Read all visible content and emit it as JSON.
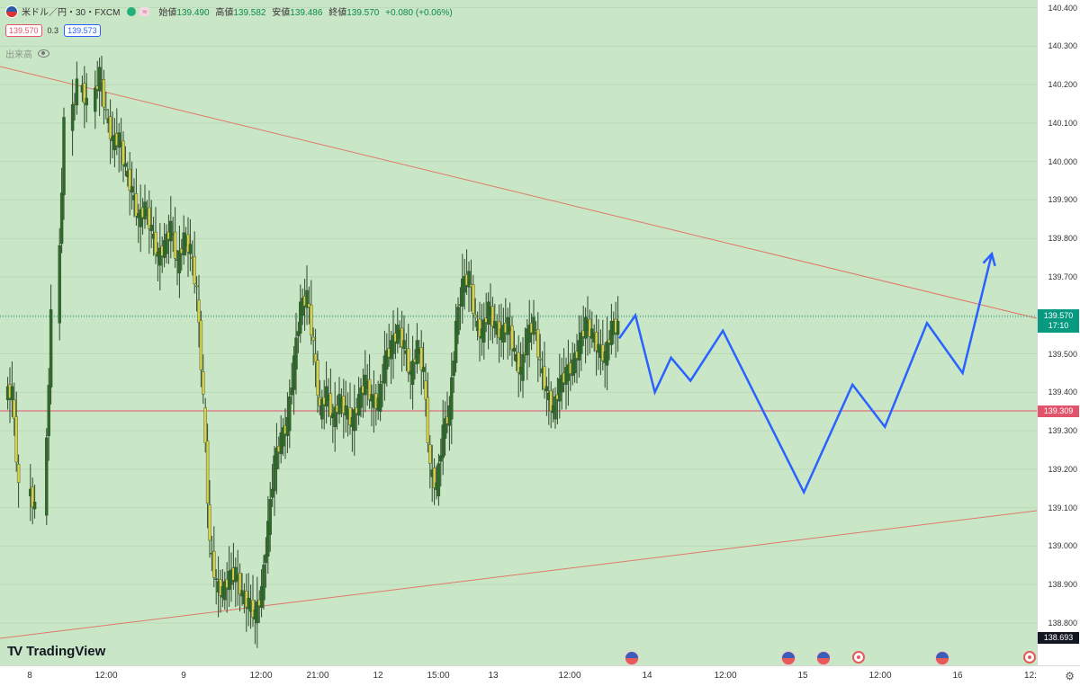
{
  "symbol": {
    "title": "米ドル／円・30・FXCM",
    "ohlc": [
      {
        "label": "始値",
        "value": "139.490"
      },
      {
        "label": "高値",
        "value": "139.582"
      },
      {
        "label": "安値",
        "value": "139.486"
      },
      {
        "label": "終値",
        "value": "139.570"
      }
    ],
    "change": "+0.080 (+0.06%)",
    "badge": "≈",
    "bid": "139.570",
    "spread": "0.3",
    "ask": "139.573",
    "volume_label": "出来高"
  },
  "price_scale": {
    "ticks": [
      "140.400",
      "140.300",
      "140.200",
      "140.100",
      "140.000",
      "139.900",
      "139.800",
      "139.700",
      "139.600",
      "139.500",
      "139.400",
      "139.300",
      "139.200",
      "139.100",
      "139.000",
      "138.900",
      "138.800"
    ],
    "current_price": "139.570",
    "countdown": "17:10",
    "hline_price": "139.309",
    "bottom_price": "138.693"
  },
  "time_scale": {
    "labels": [
      "8",
      "12:00",
      "9",
      "12:00",
      "21:00",
      "12",
      "15:00",
      "13",
      "12:00",
      "14",
      "12:00",
      "15",
      "12:00",
      "16",
      "12:"
    ]
  },
  "events": [
    {
      "type": "us"
    },
    {
      "type": "us"
    },
    {
      "type": "us"
    },
    {
      "type": "jp"
    },
    {
      "type": "us"
    },
    {
      "type": "jp"
    }
  ],
  "branding": {
    "logo_text": "TradingView",
    "logo_mark": "TV"
  },
  "colors": {
    "background": "#c9e6c6",
    "up_candle": "#2e6b2a",
    "down_candle": "#d8d04a",
    "trendline": "#e07a6a",
    "hline": "#e2546b",
    "forecast": "#2962ff",
    "current_price_badge": "#089981",
    "hline_badge": "#e2546b",
    "bottom_badge": "#131722"
  },
  "chart_data": {
    "type": "line",
    "title": "",
    "xlabel": "",
    "ylabel": "",
    "ylim": [
      138.69,
      140.42
    ],
    "series": [
      {
        "x": [
          1,
          3,
          8,
          13,
          17,
          21,
          24,
          28,
          30,
          32,
          34,
          36,
          38,
          40,
          42,
          44,
          46,
          48,
          50,
          52,
          54,
          56,
          58,
          60,
          62,
          64,
          66,
          68,
          70,
          72,
          74,
          76,
          78,
          80,
          82,
          84,
          86,
          88,
          90,
          92,
          94,
          96,
          98,
          100,
          102,
          104,
          106,
          108,
          110,
          112,
          114,
          116,
          118,
          120,
          122,
          124,
          126,
          128,
          130,
          132,
          134,
          136,
          138,
          140,
          142,
          144,
          146,
          148,
          150,
          152,
          154,
          156,
          158,
          160,
          162,
          164,
          166,
          168,
          170,
          172,
          174,
          176,
          178,
          180,
          182,
          184,
          186,
          188
        ],
        "values": [
          139.4,
          139.15,
          139.1,
          139.6,
          140.1,
          140.2,
          140.15,
          140.23,
          140.12,
          140.05,
          140.06,
          139.98,
          139.92,
          139.85,
          139.88,
          139.82,
          139.75,
          139.78,
          139.83,
          139.73,
          139.8,
          139.77,
          139.66,
          139.38,
          139.0,
          138.9,
          138.88,
          138.92,
          138.93,
          138.87,
          138.85,
          138.82,
          138.88,
          139.05,
          139.22,
          139.28,
          139.32,
          139.48,
          139.62,
          139.65,
          139.52,
          139.35,
          139.4,
          139.33,
          139.38,
          139.35,
          139.32,
          139.38,
          139.43,
          139.38,
          139.37,
          139.48,
          139.52,
          139.56,
          139.52,
          139.44,
          139.52,
          139.45,
          139.2,
          139.15,
          139.3,
          139.35,
          139.57,
          139.68,
          139.7,
          139.58,
          139.55,
          139.62,
          139.57,
          139.55,
          139.58,
          139.5,
          139.45,
          139.55,
          139.58,
          139.47,
          139.4,
          139.35,
          139.42,
          139.45,
          139.47,
          139.52,
          139.58,
          139.55,
          139.51,
          139.49,
          139.57,
          139.57
        ],
        "name": ""
      },
      {
        "x": [
          190,
          195,
          201,
          206,
          212,
          222,
          247,
          262,
          272,
          285,
          296,
          305
        ],
        "values": [
          139.54,
          139.6,
          139.4,
          139.49,
          139.43,
          139.56,
          139.14,
          139.42,
          139.31,
          139.58,
          139.45,
          139.76
        ],
        "name": ""
      }
    ]
  }
}
